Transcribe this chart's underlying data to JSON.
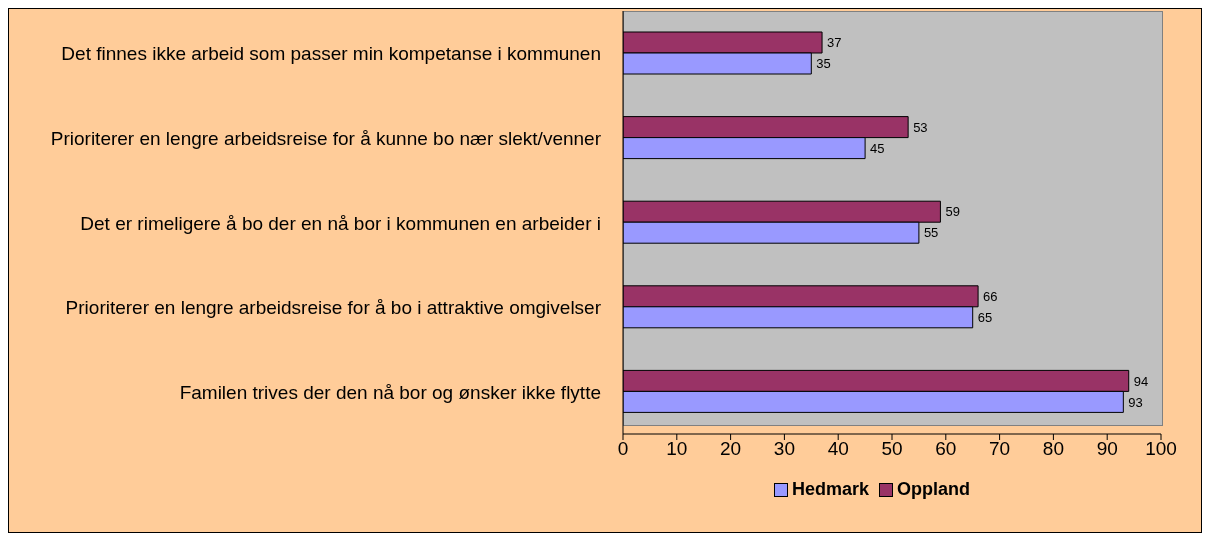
{
  "chart_data": {
    "type": "bar",
    "orientation": "horizontal",
    "categories": [
      "Det finnes ikke arbeid som passer min kompetanse i kommunen",
      "Prioriterer en lengre arbeidsreise for å kunne bo nær slekt/venner",
      "Det er rimeligere å bo der en nå bor i kommunen en arbeider i",
      "Prioriterer en lengre arbeidsreise for å bo i attraktive omgivelser",
      "Familen trives der den nå bor og ønsker ikke flytte"
    ],
    "series": [
      {
        "name": "Hedmark",
        "color": "#9999ff",
        "values": [
          35,
          45,
          55,
          65,
          93
        ]
      },
      {
        "name": "Oppland",
        "color": "#993366",
        "values": [
          37,
          53,
          59,
          66,
          94
        ]
      }
    ],
    "xlim": [
      0,
      100
    ],
    "xticks": [
      0,
      10,
      20,
      30,
      40,
      50,
      60,
      70,
      80,
      90,
      100
    ],
    "data_labels": true,
    "grid": false,
    "legend": "bottom"
  }
}
